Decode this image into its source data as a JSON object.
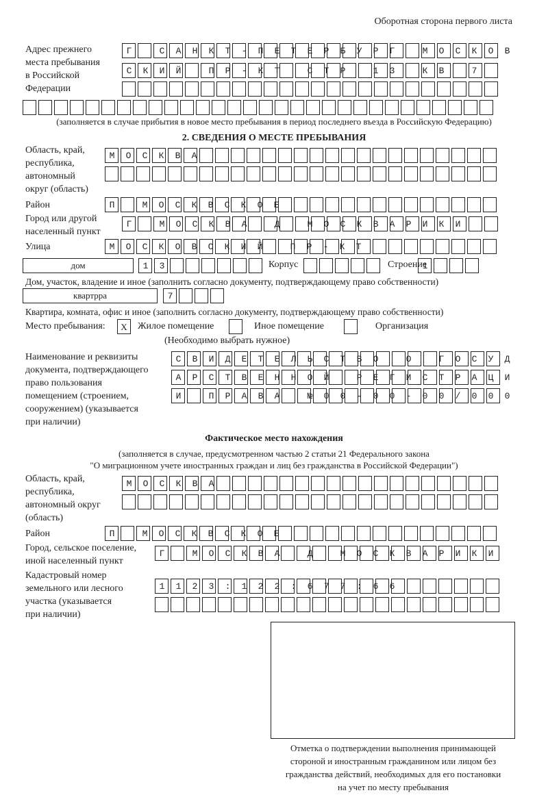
{
  "page_header": "Оборотная сторона первого листа",
  "prev_address": {
    "label": "Адрес прежнего\nместа пребывания\nв Российской\nФедерации",
    "rows": [
      "Г САНКТ-ПЕТЕРБУРГ МОСКОВ",
      "СКИЙ ПР-КТ СТР 13 КВ 7  ",
      "                        ",
      "                              "
    ],
    "note": "(заполняется в случае прибытия в новое место пребывания в период последнего въезда в Российскую Федерацию)"
  },
  "section2": {
    "title": "2. СВЕДЕНИЯ О МЕСТЕ ПРЕБЫВАНИЯ",
    "region_label": "Область, край,\nреспублика,\nавтономный\nокруг (область)",
    "region_rows": [
      "МОСКВА                   ",
      "                         "
    ],
    "district_label": "Район",
    "district_row": "П МОСКВСКОЕ              ",
    "city_label": "Город или другой\nнаселенный пункт",
    "city_row": "Г МОСКВА Д МОСКВАРИКИ   ",
    "street_label": "Улица",
    "street_row": "МОСКОВСКИЙ ПР-КТ         ",
    "house_type": "дом",
    "house_row": "13      ",
    "korpus_label": "Корпус",
    "korpus_row": "     ",
    "building_label": "Строение",
    "building_row": "1   ",
    "house_note": "Дом, участок, владение и иное (заполнить согласно документу, подтверждающему право собственности)",
    "flat_type": "квартрра",
    "flat_row": "7   ",
    "flat_note": "Квартира, комната, офис и иное (заполнить согласно документу, подтверждающему право собственности)",
    "place_label": "Место пребывания:",
    "place_options": [
      {
        "label": "Жилое помещение",
        "mark": "X"
      },
      {
        "label": "Иное помещение",
        "mark": ""
      },
      {
        "label": "Организация",
        "mark": ""
      }
    ],
    "place_note": "(Необходимо выбрать нужное)",
    "doc_label": "Наименование и реквизиты\nдокумента, подтверждающего\nправо пользования\nпомещением (строением,\nсооружением) (указывается\nпри наличии)",
    "doc_rows": [
      "СВИДЕТЕЛЬСТВО О ГОСУД",
      "АРСТВЕННОЙ РЕГИСТРАЦИ",
      "И ПРАВА №00-00-00/000"
    ]
  },
  "actual": {
    "title": "Фактическое место нахождения",
    "note_line1": "(заполняется в случае, предусмотренном частью 2 статьи 21 Федерального закона",
    "note_line2": "\"О миграционном учете иностранных граждан и лиц без гражданства в Российской Федерации\")",
    "region_label": "Область, край,\nреспублика,\nавтономный округ\n(область)",
    "region_rows": [
      "МОСКВА                  ",
      "                        "
    ],
    "district_label": "Район",
    "district_row": "П МОСКВСКОЕ              ",
    "city_label": "Город, сельское поселение,\nиной населенный пункт",
    "city_row": "Г МОСКВА Д МОСКВАРИКИ ",
    "cadastre_label": "Кадастровый номер\nземельного или лесного\nучастка (указывается\nпри наличии)",
    "cadastre_rows": [
      "1123:122:677:66       ",
      "                      "
    ]
  },
  "stamp_caption": "Отметка о подтверждении выполнения принимающей\nстороной и иностранным гражданином или лицом без\nгражданства действий, необходимых для его постановки\nна учет по месту пребывания"
}
